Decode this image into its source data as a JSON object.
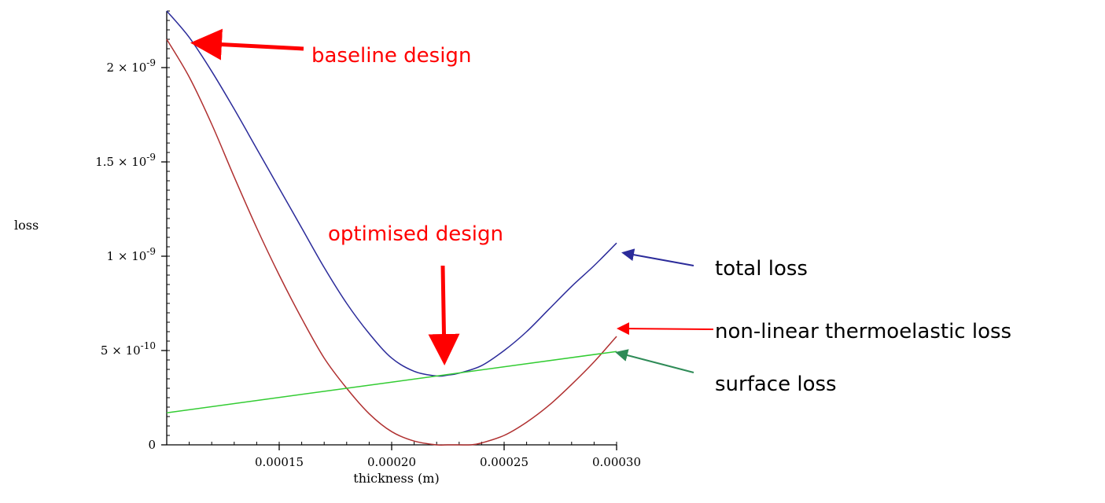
{
  "chart_data": {
    "type": "line",
    "title": "",
    "xlabel": "thickness (m)",
    "ylabel": "loss",
    "xlim": [
      0.0001,
      0.0003
    ],
    "ylim": [
      0,
      2.3e-09
    ],
    "x_ticks": [
      {
        "value": 0.00015,
        "label": "0.00015"
      },
      {
        "value": 0.0002,
        "label": "0.00020"
      },
      {
        "value": 0.00025,
        "label": "0.00025"
      },
      {
        "value": 0.0003,
        "label": "0.00030"
      }
    ],
    "y_ticks": [
      {
        "value": 0,
        "base": "0",
        "exp": ""
      },
      {
        "value": 5e-10,
        "base": "5 × 10",
        "exp": "-10"
      },
      {
        "value": 1e-09,
        "base": "1 × 10",
        "exp": "-9"
      },
      {
        "value": 1.5e-09,
        "base": "1.5 × 10",
        "exp": "-9"
      },
      {
        "value": 2e-09,
        "base": "2 × 10",
        "exp": "-9"
      }
    ],
    "grid": false,
    "legend": "none",
    "series": [
      {
        "key": "total",
        "color": "#2b2b9a",
        "x": [
          0.0001,
          0.00011,
          0.00012,
          0.00013,
          0.00014,
          0.00015,
          0.00016,
          0.00017,
          0.00018,
          0.00019,
          0.0002,
          0.00021,
          0.00022,
          0.000225,
          0.00023,
          0.00024,
          0.00025,
          0.00026,
          0.00027,
          0.00028,
          0.00029,
          0.0003
        ],
        "values": [
          2.3e-09,
          2.16e-09,
          1.98e-09,
          1.78e-09,
          1.57e-09,
          1.36e-09,
          1.15e-09,
          9.4e-10,
          7.5e-10,
          5.9e-10,
          4.6e-10,
          3.9e-10,
          3.65e-10,
          3.7e-10,
          3.8e-10,
          4.2e-10,
          5e-10,
          6e-10,
          7.2e-10,
          8.4e-10,
          9.5e-10,
          1.07e-09
        ]
      },
      {
        "key": "thermoelastic",
        "color": "#b03030",
        "x": [
          0.0001,
          0.00011,
          0.00012,
          0.00013,
          0.00014,
          0.00015,
          0.00016,
          0.00017,
          0.00018,
          0.00019,
          0.0002,
          0.00021,
          0.00022,
          0.000225,
          0.00023,
          0.000235,
          0.00024,
          0.00025,
          0.00026,
          0.00027,
          0.00028,
          0.00029,
          0.0003
        ],
        "values": [
          2.15e-09,
          1.95e-09,
          1.7e-09,
          1.42e-09,
          1.15e-09,
          9e-10,
          6.7e-10,
          4.6e-10,
          3e-10,
          1.65e-10,
          7e-11,
          2e-11,
          0,
          0,
          0,
          0,
          1e-11,
          5e-11,
          1.2e-10,
          2.1e-10,
          3.2e-10,
          4.4e-10,
          5.75e-10
        ]
      },
      {
        "key": "surface",
        "color": "#33cc33",
        "x": [
          0.0001,
          0.0003
        ],
        "values": [
          1.7e-10,
          4.95e-10
        ]
      }
    ],
    "annotations": [
      {
        "text": "baseline design",
        "color": "#ff0000"
      },
      {
        "text": "optimised design",
        "color": "#ff0000"
      },
      {
        "text": "total loss",
        "color": "#000000"
      },
      {
        "text": "non-linear thermoelastic loss",
        "color": "#000000"
      },
      {
        "text": "surface loss",
        "color": "#000000"
      }
    ]
  }
}
